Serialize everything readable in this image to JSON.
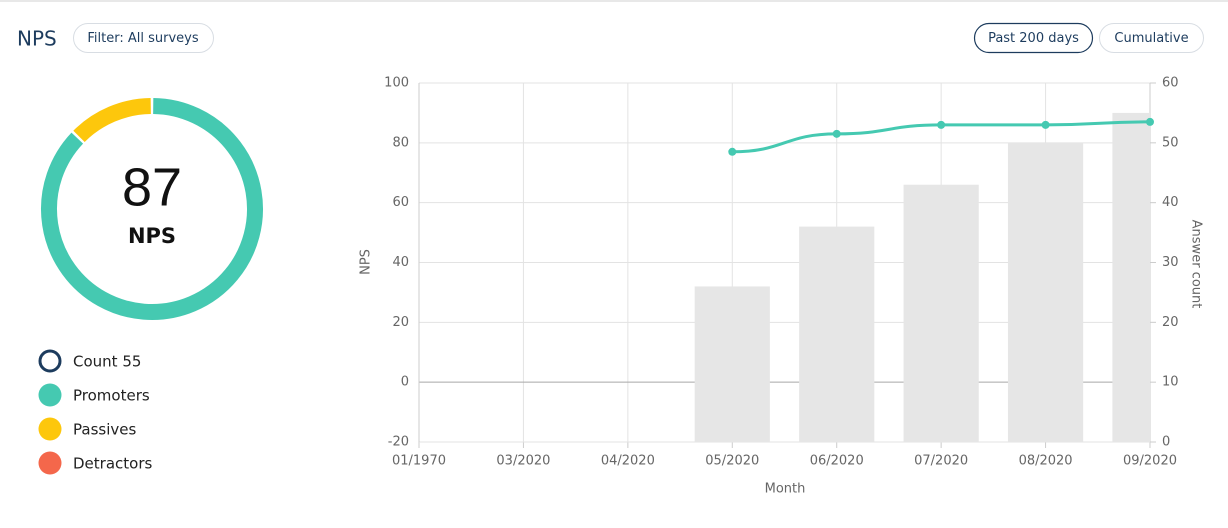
{
  "header": {
    "title": "NPS",
    "filter": "Filter: All surveys",
    "range_button": "Past 200 days",
    "mode_button": "Cumulative"
  },
  "donut": {
    "value": 87,
    "label": "NPS",
    "segments": [
      {
        "name": "Promoters",
        "color": "#45c9b1",
        "value": 48
      },
      {
        "name": "Passives",
        "color": "#fdc70c",
        "value": 7
      },
      {
        "name": "Detractors",
        "color": "#f4674b",
        "value": 0
      }
    ]
  },
  "legend_count": {
    "label": "Count 55",
    "color": "#1d3c5e"
  },
  "chart_data": {
    "type": "bar-line",
    "xlabel": "Month",
    "ylabel": "NPS",
    "y2label": "Answer count",
    "categories": [
      "01/1970",
      "03/2020",
      "04/2020",
      "05/2020",
      "06/2020",
      "07/2020",
      "08/2020",
      "09/2020"
    ],
    "series": [
      {
        "type": "bar",
        "axis": "y2",
        "color": "#e6e6e6",
        "values": [
          null,
          null,
          null,
          26,
          36,
          43,
          50,
          55
        ]
      },
      {
        "type": "line",
        "axis": "y",
        "color": "#45c9b1",
        "values": [
          null,
          null,
          null,
          77,
          83,
          86,
          86,
          87
        ]
      }
    ],
    "ylim": [
      -20,
      100
    ],
    "yticks": [
      -20,
      0,
      20,
      40,
      60,
      80,
      100
    ],
    "y2lim": [
      0,
      60
    ],
    "y2ticks": [
      0,
      10,
      20,
      30,
      40,
      50,
      60
    ],
    "grid": true
  }
}
